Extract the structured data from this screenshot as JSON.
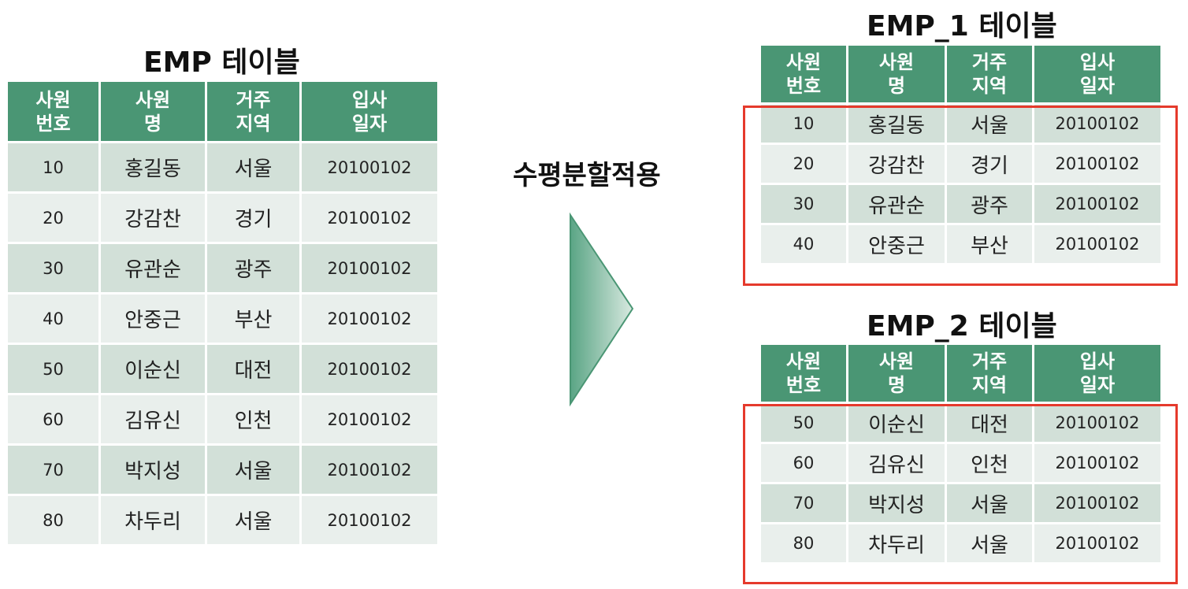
{
  "main_table": {
    "title": "EMP 테이블",
    "headers": [
      "사원\n번호",
      "사원\n명",
      "거주\n지역",
      "입사\n일자"
    ],
    "rows": [
      [
        "10",
        "홍길동",
        "서울",
        "20100102"
      ],
      [
        "20",
        "강감찬",
        "경기",
        "20100102"
      ],
      [
        "30",
        "유관순",
        "광주",
        "20100102"
      ],
      [
        "40",
        "안중근",
        "부산",
        "20100102"
      ],
      [
        "50",
        "이순신",
        "대전",
        "20100102"
      ],
      [
        "60",
        "김유신",
        "인천",
        "20100102"
      ],
      [
        "70",
        "박지성",
        "서울",
        "20100102"
      ],
      [
        "80",
        "차두리",
        "서울",
        "20100102"
      ]
    ]
  },
  "operation_label": "수평분할적용",
  "arrow_color": "#4a9674",
  "highlight_color": "#e53a2c",
  "emp1_table": {
    "title": "EMP_1 테이블",
    "headers": [
      "사원\n번호",
      "사원\n명",
      "거주\n지역",
      "입사\n일자"
    ],
    "rows": [
      [
        "10",
        "홍길동",
        "서울",
        "20100102"
      ],
      [
        "20",
        "강감찬",
        "경기",
        "20100102"
      ],
      [
        "30",
        "유관순",
        "광주",
        "20100102"
      ],
      [
        "40",
        "안중근",
        "부산",
        "20100102"
      ]
    ]
  },
  "emp2_table": {
    "title": "EMP_2 테이블",
    "headers": [
      "사원\n번호",
      "사원\n명",
      "거주\n지역",
      "입사\n일자"
    ],
    "rows": [
      [
        "50",
        "이순신",
        "대전",
        "20100102"
      ],
      [
        "60",
        "김유신",
        "인천",
        "20100102"
      ],
      [
        "70",
        "박지성",
        "서울",
        "20100102"
      ],
      [
        "80",
        "차두리",
        "서울",
        "20100102"
      ]
    ]
  }
}
